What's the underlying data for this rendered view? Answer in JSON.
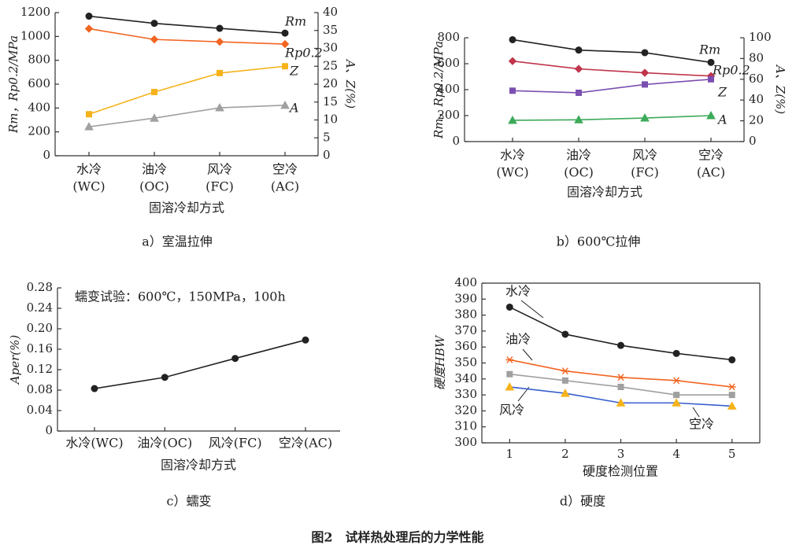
{
  "figure_caption": "图2　试样热处理后的力学性能",
  "chart_data": [
    {
      "type": "line",
      "caption": "a）室温拉伸",
      "xlabel": "固溶冷却方式",
      "ylabel": "Rm，Rp0.2/MPa",
      "y2label": "A、Z(%)",
      "categories": [
        "水冷",
        "油冷",
        "风冷",
        "空冷"
      ],
      "category_sublabels": [
        "(WC)",
        "(OC)",
        "(FC)",
        "(AC)"
      ],
      "ylim": [
        0,
        1200
      ],
      "yticks": [
        0,
        200,
        400,
        600,
        800,
        1000,
        1200
      ],
      "y2lim": [
        0,
        40
      ],
      "y2ticks": [
        0,
        5,
        10,
        15,
        20,
        25,
        30,
        35,
        40
      ],
      "series": [
        {
          "name": "Rm",
          "color": "#222222",
          "marker": "circle",
          "values": [
            1170,
            1110,
            1068,
            1028
          ]
        },
        {
          "name": "Rp0.2",
          "color": "#f26522",
          "marker": "diamond",
          "values": [
            1065,
            975,
            955,
            936
          ]
        },
        {
          "name": "Z",
          "color": "#f5b21a",
          "marker": "square",
          "axis": "y2",
          "values": [
            11.6,
            17.8,
            23.1,
            25
          ]
        },
        {
          "name": "A",
          "color": "#a0a0a0",
          "marker": "triangle",
          "axis": "y2",
          "values": [
            8.1,
            10.5,
            13.4,
            14.1
          ]
        }
      ]
    },
    {
      "type": "line",
      "caption": "b）600℃拉伸",
      "xlabel": "固溶冷却方式",
      "ylabel": "Rm，Rp0.2/MPa",
      "y2label": "A、Z(%)",
      "categories": [
        "水冷",
        "油冷",
        "风冷",
        "空冷"
      ],
      "category_sublabels": [
        "(WC)",
        "(OC)",
        "(FC)",
        "(AC)"
      ],
      "ylim": [
        0,
        800
      ],
      "yticks": [
        0,
        200,
        400,
        600,
        800
      ],
      "y2lim": [
        0,
        100
      ],
      "y2ticks": [
        0,
        20,
        40,
        60,
        80,
        100
      ],
      "series": [
        {
          "name": "Rm",
          "color": "#222222",
          "marker": "circle",
          "values": [
            785,
            705,
            685,
            610
          ]
        },
        {
          "name": "Rp0.2",
          "color": "#c0354b",
          "marker": "diamond",
          "values": [
            620,
            560,
            530,
            505
          ]
        },
        {
          "name": "Z",
          "color": "#7b4fb0",
          "marker": "square",
          "axis": "y2",
          "values": [
            49,
            47,
            55,
            60
          ]
        },
        {
          "name": "A",
          "color": "#3daa5a",
          "marker": "triangle",
          "axis": "y2",
          "values": [
            20.5,
            21,
            22.7,
            25
          ]
        }
      ]
    },
    {
      "type": "line",
      "caption": "c）蠕变",
      "xlabel": "固溶冷却方式",
      "ylabel": "Aper(%)",
      "annotation": "蠕变试验：600℃，150MPa，100h",
      "categories": [
        "水冷(WC)",
        "油冷(OC)",
        "风冷(FC)",
        "空冷(AC)"
      ],
      "ylim": [
        0,
        0.28
      ],
      "yticks": [
        0,
        0.04,
        0.08,
        0.12,
        0.16,
        {
          "value": 0.2,
          "label": "0.20"
        },
        0.24,
        0.28
      ],
      "series": [
        {
          "color": "#222222",
          "marker": "circle",
          "values": [
            0.083,
            0.105,
            0.142,
            0.178
          ]
        }
      ]
    },
    {
      "type": "line",
      "caption": "d）硬度",
      "xlabel": "硬度检测位置",
      "ylabel": "硬度HBW",
      "x": [
        1,
        2,
        3,
        4,
        5
      ],
      "xlim": [
        0.5,
        5.5
      ],
      "xticks": [
        1,
        2,
        3,
        4,
        5
      ],
      "ylim": [
        300,
        400
      ],
      "yticks": [
        300,
        310,
        320,
        330,
        340,
        350,
        360,
        370,
        380,
        390,
        400
      ],
      "series": [
        {
          "name": "水冷",
          "color": "#222222",
          "marker": "circle",
          "values": [
            385,
            368,
            361,
            356,
            352
          ]
        },
        {
          "name": "油冷",
          "color": "#f26522",
          "marker": "star",
          "values": [
            352,
            345,
            341,
            339,
            335
          ]
        },
        {
          "name": "风冷",
          "color": "#a0a0a0",
          "marker": "square",
          "values": [
            343,
            339,
            335,
            330,
            330
          ]
        },
        {
          "name": "空冷",
          "color": "#3a5fcd",
          "marker_color": "#f5b21a",
          "marker": "triangle",
          "values": [
            335,
            331,
            325,
            325,
            323
          ]
        }
      ]
    }
  ]
}
